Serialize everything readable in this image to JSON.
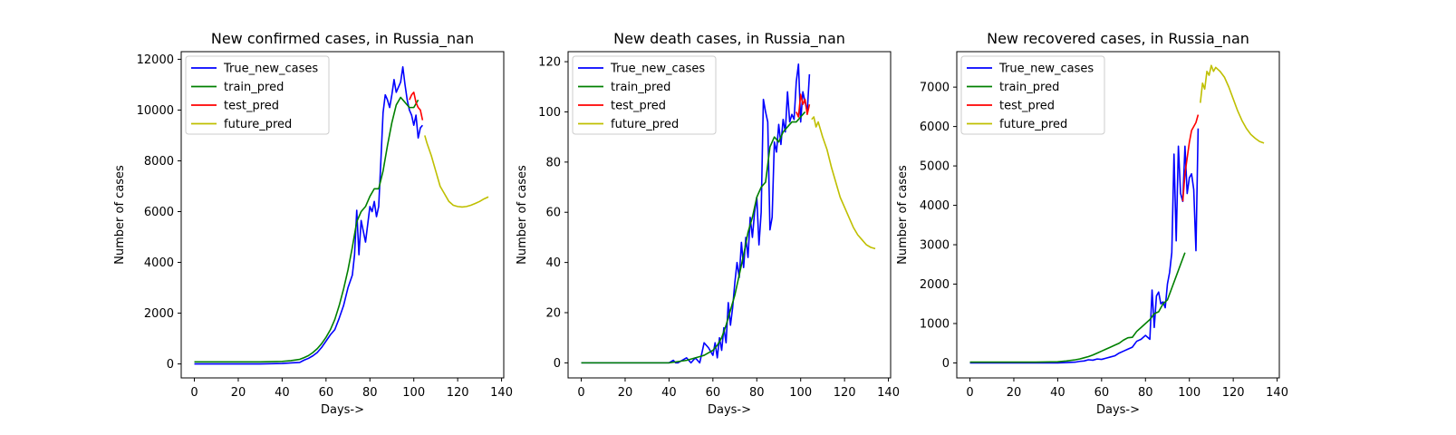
{
  "chart_data": [
    {
      "type": "line",
      "title": "New confirmed cases, in Russia_nan",
      "xlabel": "Days->",
      "ylabel": "Number of cases",
      "xlim": [
        -6,
        141
      ],
      "ylim": [
        -550,
        12300
      ],
      "xticks": [
        0,
        20,
        40,
        60,
        80,
        100,
        120,
        140
      ],
      "yticks": [
        0,
        2000,
        4000,
        6000,
        8000,
        10000,
        12000
      ],
      "legend": "top-left",
      "series": [
        {
          "name": "True_new_cases",
          "color": "#0000ff",
          "x": [
            0,
            10,
            20,
            30,
            40,
            44,
            48,
            50,
            52,
            54,
            56,
            58,
            60,
            62,
            64,
            66,
            68,
            70,
            72,
            73,
            74,
            75,
            76,
            78,
            80,
            81,
            82,
            83,
            84,
            85,
            86,
            87,
            88,
            89,
            90,
            91,
            92,
            93,
            94,
            95,
            96,
            97,
            98,
            99,
            100,
            101,
            102,
            103,
            104
          ],
          "y": [
            0,
            0,
            0,
            0,
            20,
            40,
            60,
            150,
            220,
            320,
            450,
            650,
            900,
            1150,
            1350,
            1800,
            2300,
            3000,
            3500,
            4300,
            6050,
            4300,
            5650,
            4800,
            6200,
            6000,
            6400,
            5800,
            6200,
            8000,
            9900,
            10600,
            10400,
            10100,
            10600,
            11200,
            10700,
            10900,
            11100,
            11700,
            11000,
            10400,
            10000,
            9800,
            9400,
            9800,
            8900,
            9300,
            9400
          ]
        },
        {
          "name": "train_pred",
          "color": "#008000",
          "x": [
            0,
            10,
            20,
            30,
            40,
            44,
            48,
            50,
            52,
            54,
            56,
            58,
            60,
            62,
            64,
            66,
            68,
            70,
            72,
            74,
            76,
            78,
            80,
            82,
            84,
            86,
            88,
            90,
            92,
            94,
            96,
            98,
            100,
            102
          ],
          "y": [
            80,
            80,
            80,
            80,
            100,
            130,
            180,
            250,
            330,
            450,
            600,
            800,
            1050,
            1350,
            1750,
            2300,
            2950,
            3700,
            4600,
            5600,
            6000,
            6200,
            6600,
            6900,
            6900,
            7600,
            8600,
            9500,
            10200,
            10500,
            10300,
            10100,
            10100,
            10400
          ]
        },
        {
          "name": "test_pred",
          "color": "#ff0000",
          "x": [
            98,
            99,
            100,
            101,
            102,
            103,
            104
          ],
          "y": [
            10400,
            10600,
            10700,
            10300,
            10100,
            10000,
            9600
          ]
        },
        {
          "name": "future_pred",
          "color": "#bfbf00",
          "x": [
            105,
            106,
            108,
            110,
            112,
            114,
            116,
            118,
            120,
            122,
            124,
            126,
            128,
            130,
            132,
            134
          ],
          "y": [
            9000,
            8700,
            8200,
            7600,
            7000,
            6700,
            6400,
            6250,
            6200,
            6180,
            6200,
            6250,
            6320,
            6400,
            6500,
            6580
          ]
        }
      ]
    },
    {
      "type": "line",
      "title": "New death cases, in Russia_nan",
      "xlabel": "Days->",
      "ylabel": "Number of cases",
      "xlim": [
        -6,
        141
      ],
      "ylim": [
        -6,
        124
      ],
      "xticks": [
        0,
        20,
        40,
        60,
        80,
        100,
        120,
        140
      ],
      "yticks": [
        0,
        20,
        40,
        60,
        80,
        100,
        120
      ],
      "legend": "top-left",
      "series": [
        {
          "name": "True_new_cases",
          "color": "#0000ff",
          "x": [
            0,
            10,
            20,
            30,
            40,
            42,
            43,
            44,
            48,
            50,
            52,
            54,
            56,
            58,
            60,
            61,
            62,
            63,
            64,
            65,
            66,
            67,
            68,
            69,
            70,
            71,
            72,
            73,
            74,
            75,
            76,
            77,
            78,
            79,
            80,
            81,
            82,
            83,
            84,
            85,
            86,
            87,
            88,
            89,
            90,
            91,
            92,
            93,
            94,
            95,
            96,
            97,
            98,
            99,
            100,
            101,
            102,
            103,
            104
          ],
          "y": [
            0,
            0,
            0,
            0,
            0,
            1,
            0,
            0,
            2,
            0,
            2,
            0,
            8,
            6,
            3,
            8,
            2,
            10,
            5,
            14,
            8,
            24,
            15,
            22,
            32,
            40,
            34,
            48,
            38,
            50,
            42,
            58,
            50,
            60,
            66,
            47,
            60,
            105,
            100,
            96,
            53,
            58,
            88,
            84,
            95,
            87,
            97,
            92,
            108,
            96,
            99,
            97,
            112,
            119,
            96,
            108,
            104,
            100,
            115
          ]
        },
        {
          "name": "train_pred",
          "color": "#008000",
          "x": [
            0,
            10,
            20,
            30,
            40,
            44,
            48,
            50,
            52,
            54,
            56,
            58,
            60,
            62,
            64,
            66,
            68,
            70,
            72,
            74,
            76,
            78,
            80,
            82,
            84,
            86,
            88,
            90,
            92,
            94,
            96,
            98,
            100,
            102
          ],
          "y": [
            0,
            0,
            0,
            0,
            0,
            0.5,
            1,
            1.5,
            2,
            2.5,
            3,
            4,
            5,
            7,
            10,
            15,
            21,
            27,
            35,
            43,
            52,
            58,
            66,
            70,
            72,
            86,
            90,
            88,
            92,
            94,
            96,
            96,
            98,
            100
          ]
        },
        {
          "name": "test_pred",
          "color": "#ff0000",
          "x": [
            98,
            99,
            100,
            101,
            102,
            103,
            104
          ],
          "y": [
            100,
            98,
            107,
            103,
            105,
            99,
            103
          ]
        },
        {
          "name": "future_pred",
          "color": "#bfbf00",
          "x": [
            105,
            106,
            107,
            108,
            110,
            112,
            114,
            116,
            118,
            120,
            122,
            124,
            126,
            128,
            130,
            132,
            134
          ],
          "y": [
            97,
            98,
            94,
            96,
            90,
            85,
            78,
            72,
            66,
            62,
            58,
            54,
            51,
            49,
            47,
            46,
            45.5
          ]
        }
      ]
    },
    {
      "type": "line",
      "title": "New recovered cases, in Russia_nan",
      "xlabel": "Days->",
      "ylabel": "Number of cases",
      "xlim": [
        -6,
        141
      ],
      "ylim": [
        -380,
        7900
      ],
      "xticks": [
        0,
        20,
        40,
        60,
        80,
        100,
        120,
        140
      ],
      "yticks": [
        0,
        1000,
        2000,
        3000,
        4000,
        5000,
        6000,
        7000
      ],
      "legend": "top-left",
      "series": [
        {
          "name": "True_new_cases",
          "color": "#0000ff",
          "x": [
            0,
            10,
            20,
            30,
            40,
            44,
            48,
            50,
            52,
            54,
            56,
            58,
            60,
            62,
            64,
            66,
            68,
            70,
            72,
            74,
            76,
            78,
            80,
            82,
            83,
            84,
            85,
            86,
            87,
            88,
            89,
            90,
            91,
            92,
            93,
            94,
            95,
            96,
            97,
            98,
            99,
            100,
            101,
            102,
            103,
            104
          ],
          "y": [
            0,
            0,
            0,
            0,
            0,
            10,
            20,
            40,
            50,
            80,
            70,
            100,
            90,
            120,
            150,
            180,
            250,
            300,
            350,
            400,
            550,
            600,
            700,
            600,
            1850,
            900,
            1700,
            1800,
            1500,
            1550,
            1400,
            2000,
            2300,
            2800,
            5300,
            3100,
            5500,
            4300,
            4100,
            5500,
            4300,
            4700,
            4800,
            4400,
            2850,
            5950
          ]
        },
        {
          "name": "train_pred",
          "color": "#008000",
          "x": [
            0,
            10,
            20,
            30,
            40,
            44,
            48,
            50,
            52,
            54,
            56,
            58,
            60,
            62,
            64,
            66,
            68,
            70,
            72,
            74,
            76,
            78,
            80,
            82,
            84,
            86,
            88,
            90,
            92,
            94,
            96,
            98
          ],
          "y": [
            20,
            20,
            20,
            20,
            30,
            50,
            80,
            100,
            130,
            160,
            200,
            250,
            300,
            350,
            400,
            450,
            500,
            580,
            640,
            650,
            800,
            900,
            1000,
            1100,
            1250,
            1300,
            1500,
            1600,
            1900,
            2200,
            2500,
            2800
          ]
        },
        {
          "name": "test_pred",
          "color": "#ff0000",
          "x": [
            97,
            98,
            99,
            100,
            101,
            102,
            103,
            104
          ],
          "y": [
            4100,
            4800,
            5200,
            5600,
            5900,
            6000,
            6100,
            6300
          ]
        },
        {
          "name": "future_pred",
          "color": "#bfbf00",
          "x": [
            105,
            106,
            107,
            108,
            109,
            110,
            111,
            112,
            113,
            114,
            116,
            118,
            120,
            122,
            124,
            126,
            128,
            130,
            132,
            134
          ],
          "y": [
            6600,
            7100,
            6950,
            7400,
            7300,
            7550,
            7400,
            7500,
            7450,
            7400,
            7250,
            7000,
            6700,
            6400,
            6150,
            5950,
            5800,
            5700,
            5620,
            5580
          ]
        }
      ]
    }
  ]
}
